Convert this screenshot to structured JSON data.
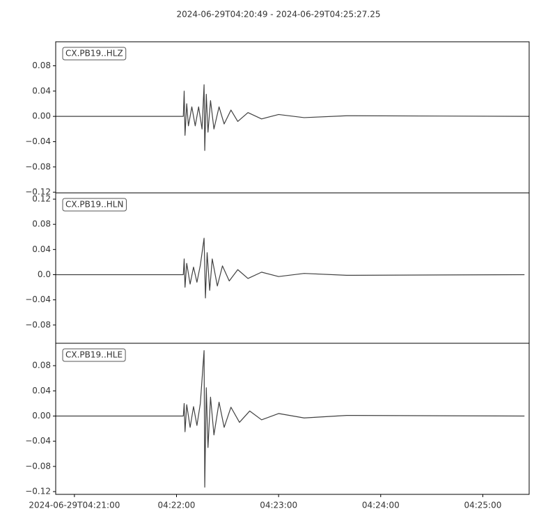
{
  "chart_data": [
    {
      "type": "line",
      "title": "2024-06-29T04:20:49  -  2024-06-29T04:25:27.25",
      "xlim": [
        "2024-06-29T04:20:49",
        "2024-06-29T04:25:27.25"
      ],
      "ylim": [
        -0.121,
        0.118
      ],
      "yticks": [
        {
          "value": -0.12,
          "label": "−0.12"
        },
        {
          "value": -0.08,
          "label": "−0.08"
        },
        {
          "value": -0.04,
          "label": "−0.04"
        },
        {
          "value": 0,
          "label": "0.00"
        },
        0.04,
        0.08
      ],
      "series": [
        {
          "name": "CX.PB19..HLZ",
          "color": "#404040",
          "x": [
            "2024-06-29T04:20:49",
            "2024-06-29T04:22:04",
            "2024-06-29T04:22:04.5",
            "2024-06-29T04:22:05",
            "2024-06-29T04:22:06",
            "2024-06-29T04:22:07",
            "2024-06-29T04:22:09",
            "2024-06-29T04:22:11",
            "2024-06-29T04:22:13",
            "2024-06-29T04:22:15",
            "2024-06-29T04:22:16.2",
            "2024-06-29T04:22:16.6",
            "2024-06-29T04:22:17.5",
            "2024-06-29T04:22:18.5",
            "2024-06-29T04:22:20",
            "2024-06-29T04:22:22",
            "2024-06-29T04:22:25",
            "2024-06-29T04:22:28",
            "2024-06-29T04:22:32",
            "2024-06-29T04:22:36",
            "2024-06-29T04:22:42",
            "2024-06-29T04:22:50",
            "2024-06-29T04:23:00",
            "2024-06-29T04:23:15",
            "2024-06-29T04:23:40",
            "2024-06-29T04:25:27.25"
          ],
          "values": [
            0,
            0,
            0.04,
            -0.03,
            0.02,
            -0.015,
            0.015,
            -0.015,
            0.015,
            -0.02,
            0.05,
            -0.054,
            0.035,
            -0.025,
            0.025,
            -0.02,
            0.015,
            -0.012,
            0.01,
            -0.008,
            0.006,
            -0.004,
            0.003,
            -0.002,
            0.001,
            0
          ]
        }
      ]
    },
    {
      "type": "line",
      "xlim": [
        "2024-06-29T04:20:49",
        "2024-06-29T04:25:27.25"
      ],
      "ylim": [
        -0.109,
        0.13
      ],
      "yticks": [
        {
          "value": -0.08,
          "label": "−0.08"
        },
        {
          "value": -0.04,
          "label": "−0.04"
        },
        {
          "value": 0,
          "label": "0.0"
        },
        0.04,
        0.08,
        0.12
      ],
      "series": [
        {
          "name": "CX.PB19..HLN",
          "color": "#404040",
          "x": [
            "2024-06-29T04:20:49",
            "2024-06-29T04:22:04",
            "2024-06-29T04:22:04.5",
            "2024-06-29T04:22:05",
            "2024-06-29T04:22:06",
            "2024-06-29T04:22:08",
            "2024-06-29T04:22:10",
            "2024-06-29T04:22:12",
            "2024-06-29T04:22:14",
            "2024-06-29T04:22:16.2",
            "2024-06-29T04:22:17",
            "2024-06-29T04:22:18",
            "2024-06-29T04:22:19.5",
            "2024-06-29T04:22:21",
            "2024-06-29T04:22:24",
            "2024-06-29T04:22:27",
            "2024-06-29T04:22:31",
            "2024-06-29T04:22:36",
            "2024-06-29T04:22:42",
            "2024-06-29T04:22:50",
            "2024-06-29T04:23:00",
            "2024-06-29T04:23:15",
            "2024-06-29T04:23:40",
            "2024-06-29T04:25:24.5"
          ],
          "values": [
            0,
            0,
            0.025,
            -0.02,
            0.018,
            -0.015,
            0.012,
            -0.012,
            0.015,
            0.058,
            -0.037,
            0.035,
            -0.025,
            0.025,
            -0.018,
            0.014,
            -0.01,
            0.008,
            -0.006,
            0.004,
            -0.003,
            0.002,
            -0.001,
            0
          ]
        }
      ]
    },
    {
      "type": "line",
      "xlim": [
        "2024-06-29T04:20:49",
        "2024-06-29T04:25:27.25"
      ],
      "ylim": [
        -0.1244,
        0.1156
      ],
      "yticks": [
        {
          "value": -0.12,
          "label": "−0.12"
        },
        {
          "value": -0.08,
          "label": "−0.08"
        },
        {
          "value": -0.04,
          "label": "−0.04"
        },
        {
          "value": 0,
          "label": "0.00"
        },
        0.04,
        0.08
      ],
      "xticks": [
        {
          "value": "2024-06-29T04:21:00",
          "label": "2024-06-29T04:21:00"
        },
        {
          "value": "2024-06-29T04:22:00",
          "label": "04:22:00"
        },
        {
          "value": "2024-06-29T04:23:00",
          "label": "04:23:00"
        },
        {
          "value": "2024-06-29T04:24:00",
          "label": "04:24:00"
        },
        {
          "value": "2024-06-29T04:25:00",
          "label": "04:25:00"
        }
      ],
      "series": [
        {
          "name": "CX.PB19..HLE",
          "color": "#404040",
          "x": [
            "2024-06-29T04:20:49",
            "2024-06-29T04:22:04",
            "2024-06-29T04:22:04.5",
            "2024-06-29T04:22:05",
            "2024-06-29T04:22:06",
            "2024-06-29T04:22:08",
            "2024-06-29T04:22:10",
            "2024-06-29T04:22:12",
            "2024-06-29T04:22:14",
            "2024-06-29T04:22:16.2",
            "2024-06-29T04:22:16.6",
            "2024-06-29T04:22:17.5",
            "2024-06-29T04:22:18.5",
            "2024-06-29T04:22:20",
            "2024-06-29T04:22:22",
            "2024-06-29T04:22:25",
            "2024-06-29T04:22:28",
            "2024-06-29T04:22:32",
            "2024-06-29T04:22:37",
            "2024-06-29T04:22:43",
            "2024-06-29T04:22:50",
            "2024-06-29T04:23:00",
            "2024-06-29T04:23:15",
            "2024-06-29T04:23:40",
            "2024-06-29T04:25:24.5"
          ],
          "values": [
            0,
            0,
            0.02,
            -0.025,
            0.018,
            -0.018,
            0.015,
            -0.015,
            0.02,
            0.104,
            -0.113,
            0.045,
            -0.05,
            0.03,
            -0.03,
            0.022,
            -0.018,
            0.014,
            -0.01,
            0.008,
            -0.006,
            0.004,
            -0.003,
            0.001,
            0
          ]
        }
      ]
    }
  ]
}
